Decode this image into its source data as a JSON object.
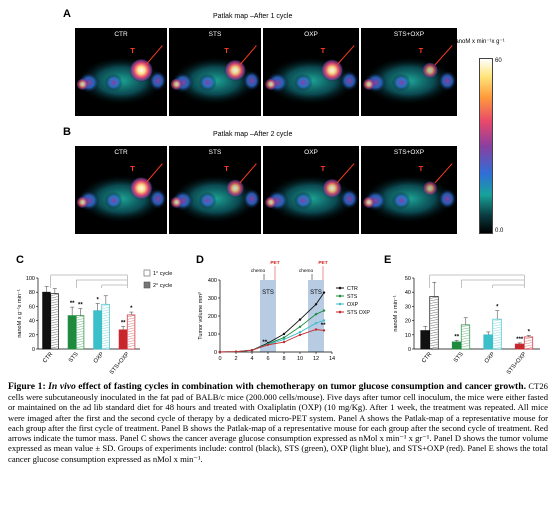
{
  "panels": {
    "A": {
      "letter": "A",
      "title": "Patlak map –After 1 cycle",
      "labels": [
        "CTR",
        "STS",
        "OXP",
        "STS+OXP"
      ],
      "tumor_marker": "T"
    },
    "B": {
      "letter": "B",
      "title": "Patlak map –After 2 cycle",
      "labels": [
        "CTR",
        "STS",
        "OXP",
        "STS+OXP"
      ],
      "tumor_marker": "T"
    }
  },
  "colorbar": {
    "unit": "nanoM x min⁻¹x g⁻¹",
    "max_label": "60",
    "min_label": "0.0",
    "colors": [
      "#ffffff",
      "#ffe57a",
      "#ff9a3c",
      "#e8486b",
      "#8a3fa0",
      "#2e6fd8",
      "#17a39a",
      "#000000"
    ]
  },
  "chart_data": [
    {
      "id": "C",
      "letter": "C",
      "type": "bar",
      "categories": [
        "CTR",
        "STS",
        "OXP",
        "STS+OXP"
      ],
      "series": [
        {
          "name": "1° cycle",
          "values": [
            80,
            47,
            54,
            27
          ],
          "errors": [
            8,
            12,
            10,
            5
          ]
        },
        {
          "name": "2° cycle",
          "values": [
            78,
            47,
            63,
            48
          ],
          "errors": [
            7,
            10,
            12,
            4
          ]
        }
      ],
      "significance": [
        "",
        "**",
        "*",
        "**"
      ],
      "significance_2": [
        "",
        "**",
        "",
        "*"
      ],
      "ylabel": "nanoM x g⁻¹x min⁻¹",
      "ylim": [
        0,
        100
      ],
      "yticks": [
        0,
        20,
        40,
        60,
        80,
        100
      ],
      "colors": [
        "#111111",
        "#1e8a3e",
        "#3bbfc9",
        "#c9262c"
      ]
    },
    {
      "id": "D",
      "letter": "D",
      "type": "line",
      "x": [
        0,
        2,
        4,
        6,
        8,
        10,
        12,
        13
      ],
      "series": [
        {
          "name": "CTR",
          "color": "#111111",
          "values": [
            0,
            2,
            10,
            50,
            100,
            180,
            265,
            330
          ]
        },
        {
          "name": "STS",
          "color": "#1e8a3e",
          "values": [
            0,
            2,
            10,
            45,
            80,
            140,
            210,
            230
          ]
        },
        {
          "name": "OXP",
          "color": "#3bbfc9",
          "values": [
            0,
            2,
            10,
            42,
            70,
            110,
            160,
            175
          ]
        },
        {
          "name": "STS OXP",
          "color": "#c9262c",
          "values": [
            0,
            2,
            10,
            40,
            55,
            95,
            125,
            120
          ]
        }
      ],
      "ylabel": "Tumor volume mm³",
      "xlim": [
        0,
        14
      ],
      "xticks": [
        0,
        2,
        4,
        6,
        8,
        10,
        12,
        14
      ],
      "ylim": [
        0,
        400
      ],
      "yticks": [
        0,
        100,
        200,
        300,
        400
      ],
      "shaded_intervals": [
        [
          5,
          7
        ],
        [
          11,
          13
        ]
      ],
      "shaded_label": "STS",
      "annotations": {
        "chemo": "chemo",
        "pet": "PET",
        "sig1": "**",
        "sig2": "**"
      }
    },
    {
      "id": "E",
      "letter": "E",
      "type": "bar",
      "categories": [
        "CTR",
        "STS",
        "OXP",
        "STS+OXP"
      ],
      "series": [
        {
          "name": "1° cycle",
          "values": [
            13,
            5,
            10,
            3.5
          ],
          "errors": [
            3,
            1,
            2,
            0.8
          ]
        },
        {
          "name": "2° cycle",
          "values": [
            37,
            17,
            21,
            8.5
          ],
          "errors": [
            10,
            5,
            6,
            1
          ]
        }
      ],
      "significance": [
        "",
        "**",
        "",
        "***"
      ],
      "significance_2": [
        "",
        "",
        "*",
        "*"
      ],
      "ylabel": "nanoM x min⁻¹",
      "ylim": [
        0,
        50
      ],
      "yticks": [
        0,
        10,
        20,
        30,
        40,
        50
      ],
      "colors": [
        "#111111",
        "#1e8a3e",
        "#3bbfc9",
        "#c9262c"
      ]
    }
  ],
  "caption": {
    "label": "Figure 1:",
    "title_italic": "In vivo",
    "title_rest": "effect of fasting cycles in combination with chemotherapy on tumor glucose consumption and cancer growth.",
    "body": "CT26 cells were subcutaneously inoculated in the fat pad of BALB/c mice (200.000 cells/mouse). Five days after tumor cell inoculum, the mice were either fasted or maintained on the ad lib standard diet for 48 hours and treated with Oxaliplatin (OXP) (10 mg/Kg). After 1 week, the treatment was repeated. All mice were imaged after the first and the second cycle of therapy by a dedicated micro-PET system. Panel A shows the Patlak-map of a representative mouse for each group after the first cycle of treatment. Panel B shows the Patlak-map of a representative mouse for each group after the second cycle of treatment. Red arrows indicate the tumor mass. Panel C shows the cancer average glucose consumption expressed as nMol x min⁻¹ x gr⁻¹. Panel D shows the tumor volume expressed as mean value ± SD. Groups of experiments include: control (black), STS (green), OXP (light blue), and STS+OXP (red). Panel E shows the total cancer glucose consumption expressed as nMol x min⁻¹."
  }
}
